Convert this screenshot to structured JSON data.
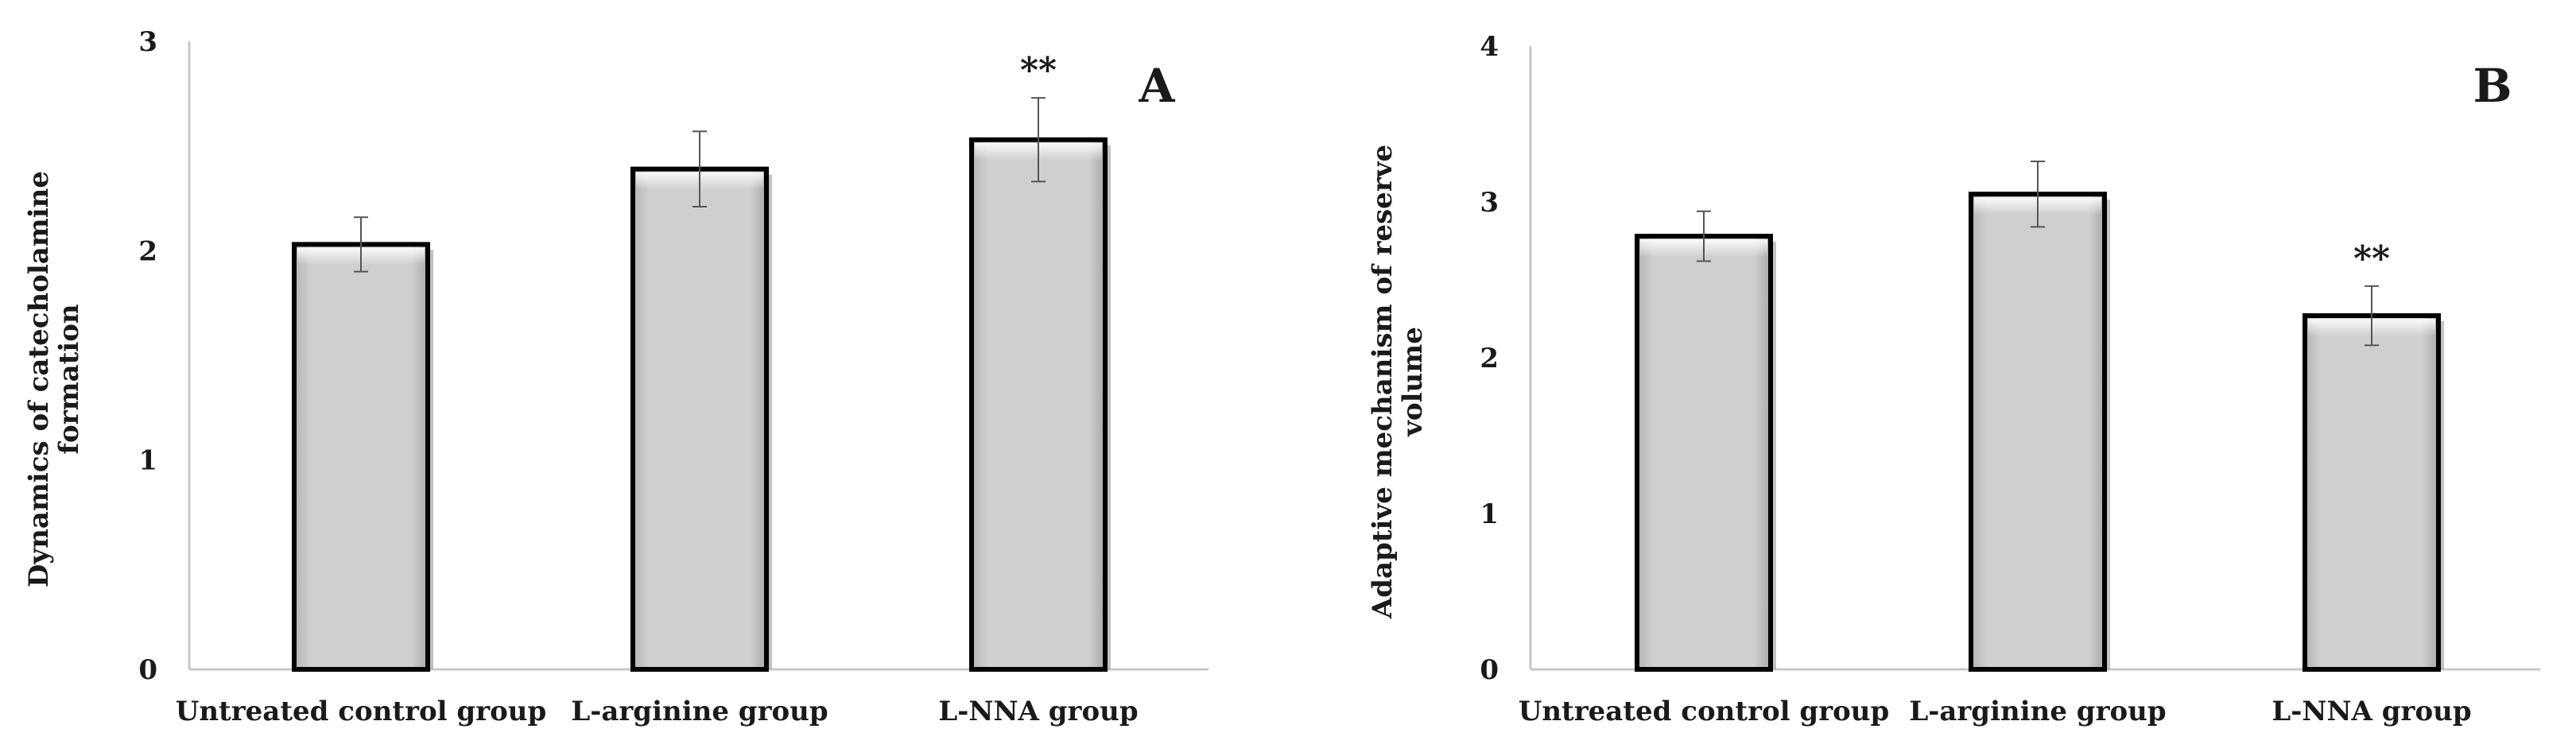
{
  "chart_data": [
    {
      "type": "bar",
      "panel_label": "A",
      "ylabel_lines": [
        "Dynamics of catecholamine",
        "formation"
      ],
      "xlabel": "",
      "categories": [
        "Untreated control group",
        "L-arginine group",
        "L-NNA group"
      ],
      "values": [
        2.03,
        2.39,
        2.53
      ],
      "error": [
        0.13,
        0.18,
        0.2
      ],
      "significance": [
        "",
        "",
        "**"
      ],
      "yticks": [
        0,
        1,
        2,
        3
      ],
      "ylim": [
        0,
        3
      ],
      "grid": false,
      "colors": {
        "bar_fill": "#c8c8c8",
        "bar_edge": "#000000"
      }
    },
    {
      "type": "bar",
      "panel_label": "B",
      "ylabel_lines": [
        "Adaptive mechanism of reserve",
        "volume"
      ],
      "xlabel": "",
      "categories": [
        "Untreated control group",
        "L-arginine group",
        "L-NNA group"
      ],
      "values": [
        2.78,
        3.05,
        2.27
      ],
      "error": [
        0.16,
        0.21,
        0.19
      ],
      "significance": [
        "",
        "",
        "**"
      ],
      "yticks": [
        0,
        1,
        2,
        3,
        4
      ],
      "ylim": [
        0,
        4
      ],
      "grid": false,
      "colors": {
        "bar_fill": "#c8c8c8",
        "bar_edge": "#000000"
      }
    }
  ]
}
